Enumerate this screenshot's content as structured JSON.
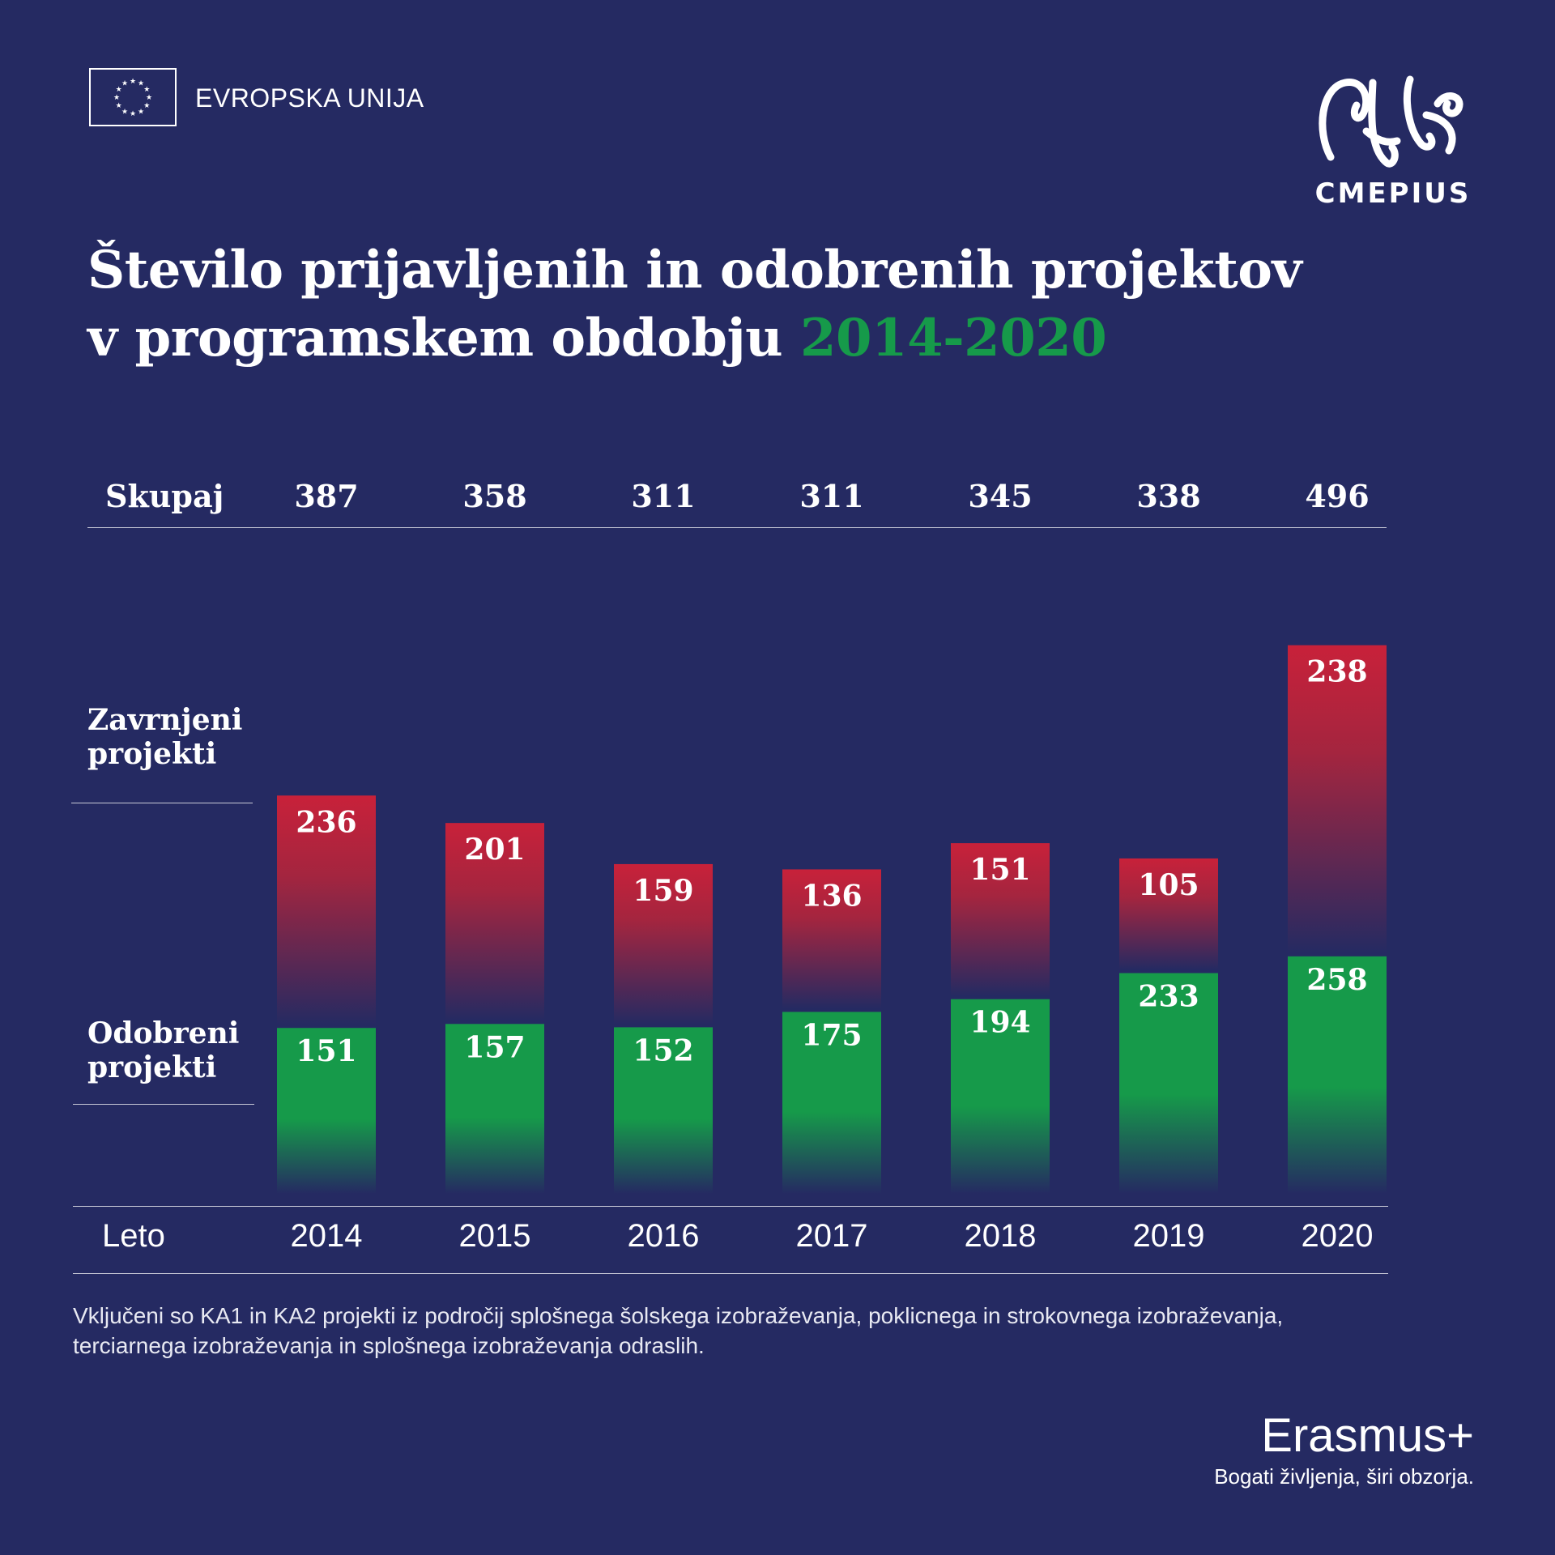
{
  "header": {
    "eu_text": "EVROPSKA UNIJA",
    "logo_text": "CMEPIUS"
  },
  "title": {
    "line1": "Število prijavljenih in odobrenih projektov",
    "line2": "v programskem obdobju",
    "accent": "2014-2020"
  },
  "labels": {
    "total": "Skupaj",
    "rejected": "Zavrnjeni\nprojekti",
    "approved": "Odobreni\nprojekti",
    "year": "Leto"
  },
  "chart_data": {
    "type": "bar",
    "categories": [
      "2014",
      "2015",
      "2016",
      "2017",
      "2018",
      "2019",
      "2020"
    ],
    "totals": [
      387,
      358,
      311,
      311,
      345,
      338,
      496
    ],
    "series": [
      {
        "name": "Odobreni projekti",
        "values": [
          151,
          157,
          152,
          175,
          194,
          233,
          258
        ],
        "color": "#169a4a"
      },
      {
        "name": "Zavrnjeni projekti",
        "values": [
          236,
          201,
          159,
          136,
          151,
          105,
          238
        ],
        "color": "#c8213a"
      }
    ],
    "bar_style": "stacked",
    "background": "#252a62",
    "accent_green": "#169a4a"
  },
  "footnote": "Vključeni so KA1 in KA2 projekti iz področij splošnega šolskega izobraževanja, poklicnega in strokovnega izobraževanja, terciarnega izobraževanja in splošnega izobraževanja odraslih.",
  "footer": {
    "brand": "Erasmus+",
    "tagline": "Bogati življenja, širi obzorja."
  },
  "icons": [
    "eu-flag-icon",
    "cmepius-logo-icon"
  ]
}
